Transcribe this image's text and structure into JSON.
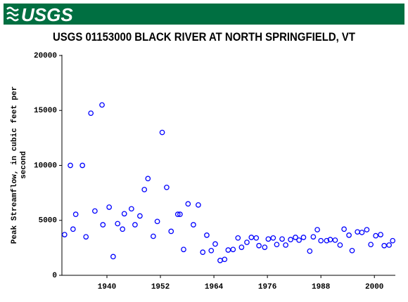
{
  "header": {
    "logo": "USGS"
  },
  "chart_data": {
    "type": "scatter",
    "title": "USGS 01153000 BLACK RIVER AT NORTH SPRINGFIELD, VT",
    "ylabel": [
      "Peak Streamflow, in cubic feet per",
      "second"
    ],
    "color": "#0000ff",
    "xlim": [
      1929.9,
      2004.7
    ],
    "ylim": [
      0,
      20000
    ],
    "xticks": [
      1940,
      1952,
      1964,
      1976,
      1988,
      2000
    ],
    "yticks": [
      0,
      5000,
      10000,
      15000,
      20000
    ],
    "x": [
      1930.5,
      1931.8,
      1932.4,
      1933.0,
      1934.5,
      1935.3,
      1936.4,
      1937.3,
      1938.9,
      1939.1,
      1940.5,
      1941.4,
      1942.4,
      1943.5,
      1943.9,
      1945.5,
      1946.3,
      1947.4,
      1948.4,
      1949.2,
      1950.4,
      1951.3,
      1952.4,
      1953.4,
      1954.4,
      1955.9,
      1956.4,
      1957.2,
      1958.2,
      1959.4,
      1960.5,
      1961.5,
      1962.4,
      1963.4,
      1964.3,
      1965.4,
      1966.4,
      1967.2,
      1968.3,
      1969.4,
      1970.2,
      1971.4,
      1972.4,
      1973.5,
      1974.1,
      1975.4,
      1976.2,
      1977.3,
      1978.1,
      1979.3,
      1980.1,
      1981.2,
      1982.3,
      1983.1,
      1984.1,
      1985.5,
      1986.3,
      1987.2,
      1988.0,
      1989.3,
      1990.1,
      1991.2,
      1992.3,
      1993.2,
      1994.3,
      1995.0,
      1996.2,
      1997.2,
      1998.3,
      1999.2,
      2000.3,
      2001.4,
      2002.2,
      2003.3,
      2004.1
    ],
    "values": [
      3700,
      10000,
      4200,
      5550,
      10000,
      3500,
      14750,
      5850,
      15500,
      4600,
      6200,
      1700,
      4700,
      4200,
      5600,
      6050,
      4600,
      5400,
      7800,
      8800,
      3550,
      4900,
      13000,
      8000,
      4000,
      5550,
      5550,
      2350,
      6500,
      4600,
      6400,
      2100,
      3650,
      2250,
      2850,
      1350,
      1450,
      2300,
      2350,
      3400,
      2550,
      3000,
      3450,
      3400,
      2700,
      2550,
      3300,
      3400,
      2800,
      3300,
      2750,
      3250,
      3450,
      3200,
      3450,
      2200,
      3500,
      4150,
      3150,
      3150,
      3250,
      3200,
      2750,
      4200,
      3650,
      2250,
      3950,
      3900,
      4150,
      2800,
      3600,
      3700,
      2700,
      2750,
      3150
    ]
  }
}
